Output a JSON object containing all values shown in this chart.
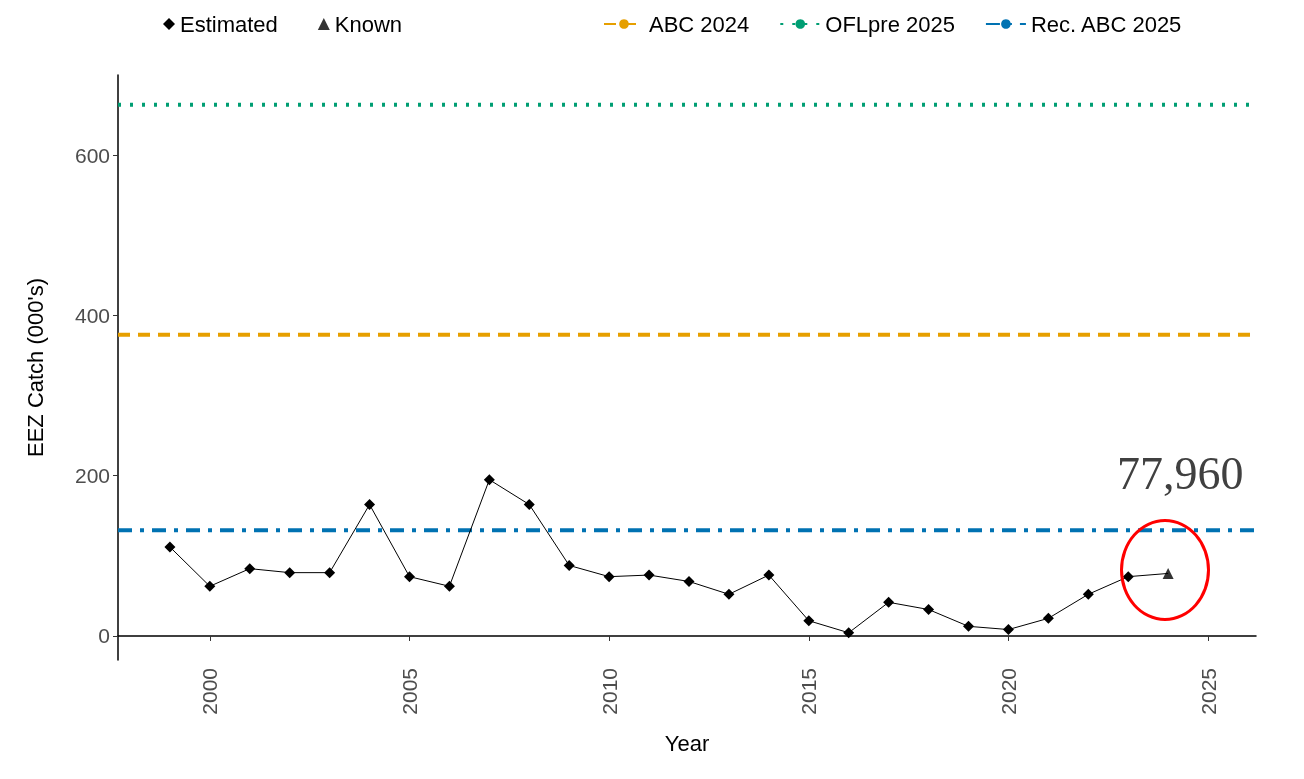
{
  "chart_data": {
    "type": "line",
    "xlabel": "Year",
    "ylabel": "EEZ Catch (000's)",
    "xlim": [
      1997.7,
      2026.2
    ],
    "xticks": [
      2000,
      2005,
      2010,
      2015,
      2020,
      2025
    ],
    "ylim": [
      -30,
      700
    ],
    "yticks": [
      0,
      200,
      400,
      600
    ],
    "grid": false,
    "legend": "top",
    "series": [
      {
        "name": "Estimated",
        "color": "#000000",
        "marker": "diamond",
        "x": [
          1999,
          2000,
          2001,
          2002,
          2003,
          2004,
          2005,
          2006,
          2007,
          2008,
          2009,
          2010,
          2011,
          2012,
          2013,
          2014,
          2015,
          2016,
          2017,
          2018,
          2019,
          2020,
          2021,
          2022,
          2023
        ],
        "values": [
          111,
          62,
          84,
          79,
          79,
          164,
          74,
          62,
          195,
          164,
          88,
          74,
          76,
          68,
          52,
          76,
          19,
          4,
          42,
          33,
          12,
          8,
          22,
          52,
          74
        ]
      },
      {
        "name": "Known",
        "type": "scatter",
        "color": "#000000",
        "marker": "triangle",
        "x": [
          2024
        ],
        "values": [
          78
        ]
      },
      {
        "type": "line",
        "color": "#000000",
        "marker": "none",
        "x": [
          2023,
          2024
        ],
        "values": [
          74,
          78
        ]
      }
    ],
    "ref_lines": [
      {
        "axis": "y",
        "value": 376,
        "label": "ABC 2024",
        "color": "#e69f00",
        "line_style": "dashed"
      },
      {
        "axis": "y",
        "value": 663,
        "label": "OFLpre 2025",
        "color": "#009e73",
        "line_style": "dotted"
      },
      {
        "axis": "y",
        "value": 132,
        "label": "Rec. ABC 2025",
        "color": "#0072b2",
        "line_style": "dashdot"
      }
    ],
    "annotations": [
      "77,960"
    ]
  }
}
